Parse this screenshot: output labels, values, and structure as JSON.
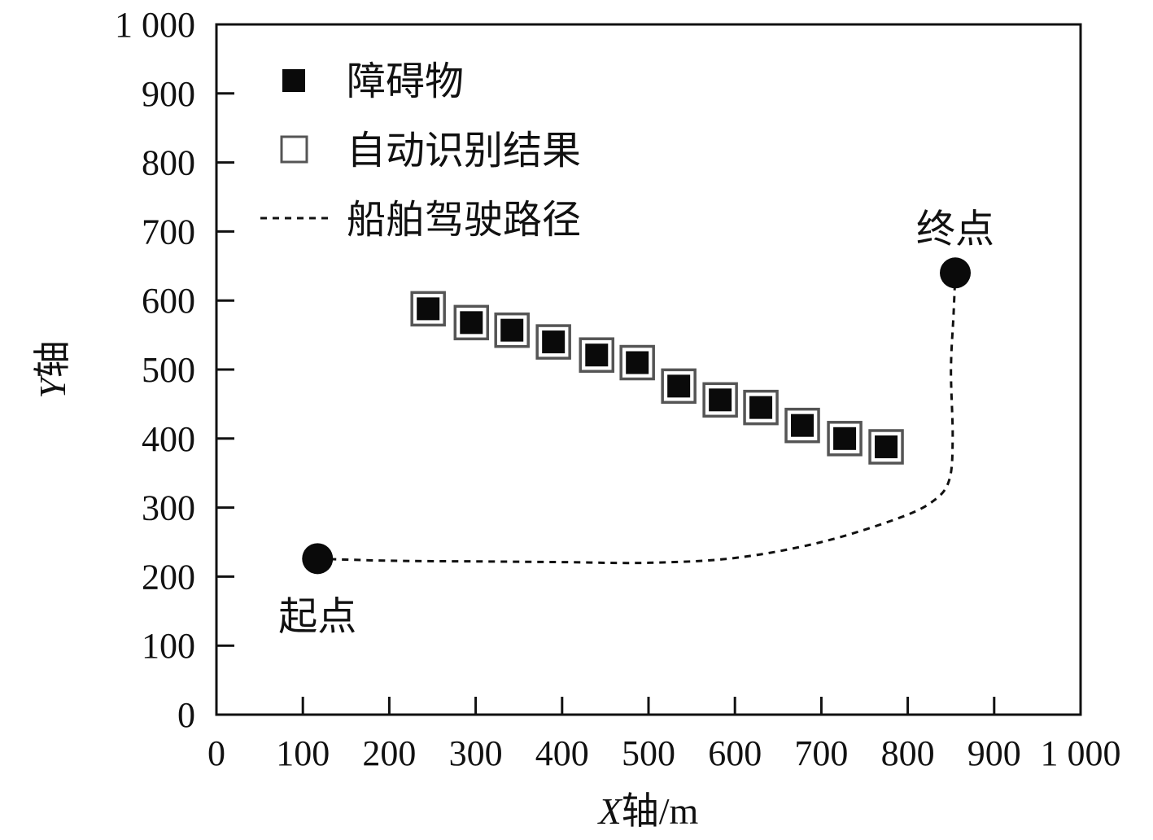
{
  "chart_data": {
    "type": "scatter",
    "title": "",
    "xlabel": {
      "var": "X",
      "rest": "轴/m"
    },
    "ylabel": {
      "var": "Y",
      "rest": "轴"
    },
    "xlim": [
      0,
      1000
    ],
    "ylim": [
      0,
      1000
    ],
    "xticks": [
      0,
      100,
      200,
      300,
      400,
      500,
      600,
      700,
      800,
      900,
      1000
    ],
    "yticks": [
      0,
      100,
      200,
      300,
      400,
      500,
      600,
      700,
      800,
      900,
      1000
    ],
    "xtick_labels": [
      "0",
      "100",
      "200",
      "300",
      "400",
      "500",
      "600",
      "700",
      "800",
      "900",
      "1 000"
    ],
    "ytick_labels": [
      "0",
      "100",
      "200",
      "300",
      "400",
      "500",
      "600",
      "700",
      "800",
      "900",
      "1 000"
    ],
    "legend": [
      {
        "label": "障碍物",
        "marker": "filled-square"
      },
      {
        "label": "自动识别结果",
        "marker": "hollow-square"
      },
      {
        "label": "船舶驾驶路径",
        "marker": "dashed-line"
      }
    ],
    "obstacles": [
      {
        "x": 245,
        "y": 588
      },
      {
        "x": 295,
        "y": 568
      },
      {
        "x": 342,
        "y": 557
      },
      {
        "x": 390,
        "y": 540
      },
      {
        "x": 440,
        "y": 521
      },
      {
        "x": 487,
        "y": 510
      },
      {
        "x": 535,
        "y": 476
      },
      {
        "x": 583,
        "y": 456
      },
      {
        "x": 630,
        "y": 445
      },
      {
        "x": 678,
        "y": 419
      },
      {
        "x": 727,
        "y": 400
      },
      {
        "x": 775,
        "y": 388
      }
    ],
    "detections": [
      {
        "x": 245,
        "y": 588
      },
      {
        "x": 295,
        "y": 568
      },
      {
        "x": 342,
        "y": 557
      },
      {
        "x": 390,
        "y": 540
      },
      {
        "x": 440,
        "y": 521
      },
      {
        "x": 487,
        "y": 510
      },
      {
        "x": 535,
        "y": 476
      },
      {
        "x": 583,
        "y": 456
      },
      {
        "x": 630,
        "y": 445
      },
      {
        "x": 678,
        "y": 419
      },
      {
        "x": 727,
        "y": 400
      },
      {
        "x": 775,
        "y": 388
      }
    ],
    "path": [
      {
        "x": 117,
        "y": 226
      },
      {
        "x": 200,
        "y": 223
      },
      {
        "x": 300,
        "y": 222
      },
      {
        "x": 400,
        "y": 221
      },
      {
        "x": 500,
        "y": 220
      },
      {
        "x": 600,
        "y": 227
      },
      {
        "x": 700,
        "y": 250
      },
      {
        "x": 790,
        "y": 285
      },
      {
        "x": 830,
        "y": 310
      },
      {
        "x": 848,
        "y": 340
      },
      {
        "x": 852,
        "y": 400
      },
      {
        "x": 850,
        "y": 500
      },
      {
        "x": 853,
        "y": 580
      },
      {
        "x": 855,
        "y": 640
      }
    ],
    "start": {
      "x": 117,
      "y": 226,
      "label": "起点"
    },
    "end": {
      "x": 855,
      "y": 640,
      "label": "终点"
    }
  }
}
